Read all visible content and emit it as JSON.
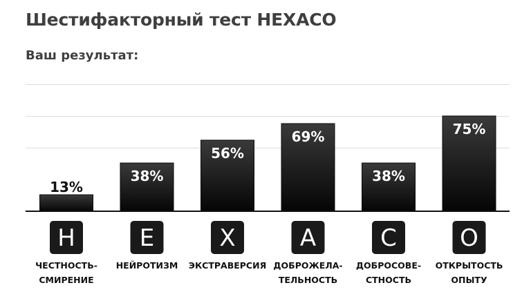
{
  "header": {
    "title": "Шестифакторный тест HEXACO",
    "result_label": "Ваш результат:"
  },
  "chart_data": {
    "type": "bar",
    "ylim": [
      0,
      100
    ],
    "grid": true,
    "legend": "none",
    "value_suffix": "%",
    "colors": {
      "bar_top": "#3a3a3a",
      "bar_bottom": "#050505",
      "letter_box": "#1a1a1a",
      "grid": "#dcdcdc"
    },
    "gridlines": [
      100,
      75,
      50
    ],
    "categories": [
      {
        "letter": "H",
        "label_lines": [
          "ЧЕСТНОСТЬ-",
          "СМИРЕНИЕ"
        ],
        "value": 13
      },
      {
        "letter": "E",
        "label_lines": [
          "НЕЙРОТИЗМ"
        ],
        "value": 38
      },
      {
        "letter": "X",
        "label_lines": [
          "ЭКСТРАВЕРСИЯ"
        ],
        "value": 56
      },
      {
        "letter": "A",
        "label_lines": [
          "ДОБРОЖЕЛА-",
          "ТЕЛЬНОСТЬ"
        ],
        "value": 69
      },
      {
        "letter": "C",
        "label_lines": [
          "ДОБРОСОВЕ-",
          "СТНОСТЬ"
        ],
        "value": 38
      },
      {
        "letter": "O",
        "label_lines": [
          "ОТКРЫТОСТЬ",
          "ОПЫТУ"
        ],
        "value": 75
      }
    ]
  }
}
